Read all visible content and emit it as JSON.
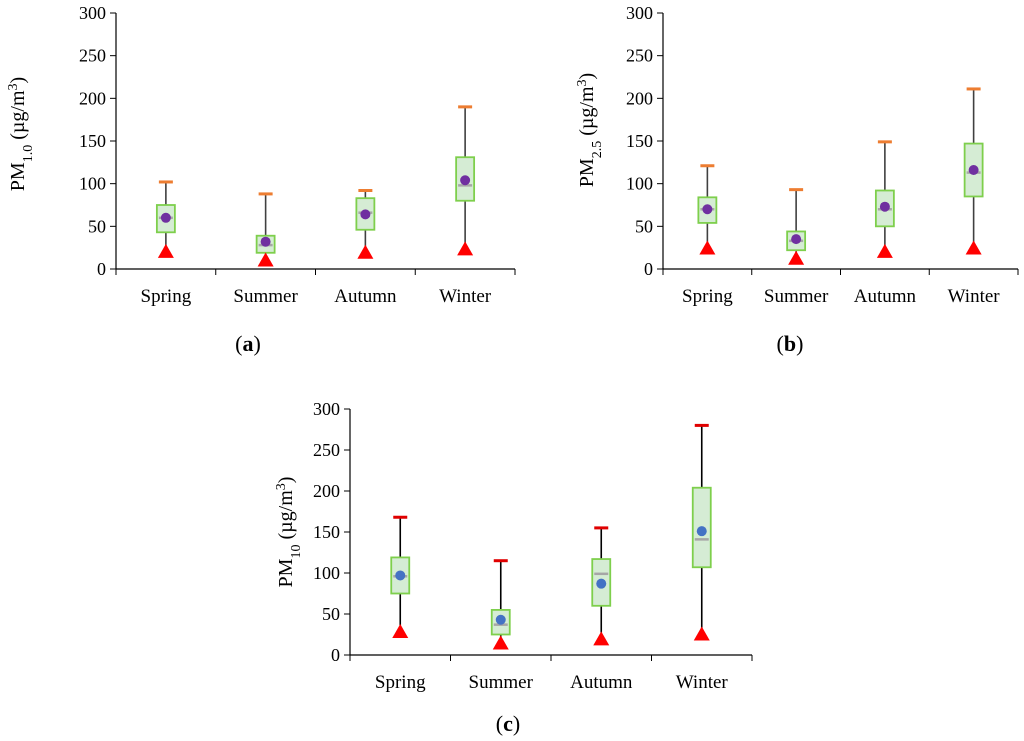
{
  "chart_data": [
    {
      "type": "box",
      "panel_label": "a",
      "ylabel": "PM",
      "ylabel_sub": "1.0",
      "ylabel_unit": " (µg/m",
      "ylabel_sup": "3",
      "ylabel_close": ")",
      "ylim": [
        0,
        300
      ],
      "yticks": [
        0,
        50,
        100,
        150,
        200,
        250,
        300
      ],
      "categories": [
        "Spring",
        "Summer",
        "Autumn",
        "Winter"
      ],
      "boxes": [
        {
          "min": 20,
          "q1": 43,
          "median": 60,
          "q3": 75,
          "max": 102,
          "mean": 60
        },
        {
          "min": 10,
          "q1": 19,
          "median": 28,
          "q3": 39,
          "max": 88,
          "mean": 32
        },
        {
          "min": 19,
          "q1": 46,
          "median": 66,
          "q3": 83,
          "max": 92,
          "mean": 64
        },
        {
          "min": 23,
          "q1": 80,
          "median": 98,
          "q3": 131,
          "max": 190,
          "mean": 104
        }
      ],
      "colors": {
        "box_fill": "#d5ecd4",
        "box_edge": "#7ecf4c",
        "whisker": "#404040",
        "max_cap": "#ed7d31",
        "median": "#a6a6a6",
        "mean": "#7030a0",
        "min_marker": "#ff0000"
      }
    },
    {
      "type": "box",
      "panel_label": "b",
      "ylabel": "PM",
      "ylabel_sub": "2.5",
      "ylabel_unit": " (µg/m",
      "ylabel_sup": "3",
      "ylabel_close": ")",
      "ylim": [
        0,
        300
      ],
      "yticks": [
        0,
        50,
        100,
        150,
        200,
        250,
        300
      ],
      "categories": [
        "Spring",
        "Summer",
        "Autumn",
        "Winter"
      ],
      "boxes": [
        {
          "min": 24,
          "q1": 54,
          "median": 70,
          "q3": 84,
          "max": 121,
          "mean": 70
        },
        {
          "min": 12,
          "q1": 22,
          "median": 33,
          "q3": 44,
          "max": 93,
          "mean": 35
        },
        {
          "min": 20,
          "q1": 50,
          "median": 70,
          "q3": 92,
          "max": 149,
          "mean": 73
        },
        {
          "min": 24,
          "q1": 85,
          "median": 113,
          "q3": 147,
          "max": 211,
          "mean": 116
        }
      ],
      "colors": {
        "box_fill": "#d5ecd4",
        "box_edge": "#7ecf4c",
        "whisker": "#404040",
        "max_cap": "#ed7d31",
        "median": "#a6a6a6",
        "mean": "#7030a0",
        "min_marker": "#ff0000"
      }
    },
    {
      "type": "box",
      "panel_label": "c",
      "ylabel": "PM",
      "ylabel_sub": "10",
      "ylabel_unit": " (µg/m",
      "ylabel_sup": "3",
      "ylabel_close": ")",
      "ylim": [
        0,
        300
      ],
      "yticks": [
        0,
        50,
        100,
        150,
        200,
        250,
        300
      ],
      "categories": [
        "Spring",
        "Summer",
        "Autumn",
        "Winter"
      ],
      "boxes": [
        {
          "min": 28,
          "q1": 75,
          "median": 96,
          "q3": 119,
          "max": 168,
          "mean": 97
        },
        {
          "min": 14,
          "q1": 25,
          "median": 37,
          "q3": 55,
          "max": 115,
          "mean": 43
        },
        {
          "min": 19,
          "q1": 60,
          "median": 99,
          "q3": 117,
          "max": 155,
          "mean": 87
        },
        {
          "min": 25,
          "q1": 107,
          "median": 141,
          "q3": 204,
          "max": 280,
          "mean": 151
        }
      ],
      "colors": {
        "box_fill": "#d5ecd4",
        "box_edge": "#7ecf4c",
        "whisker": "#000000",
        "max_cap": "#e00000",
        "median": "#a6a6a6",
        "mean": "#4472c4",
        "min_marker": "#ff0000"
      }
    }
  ]
}
